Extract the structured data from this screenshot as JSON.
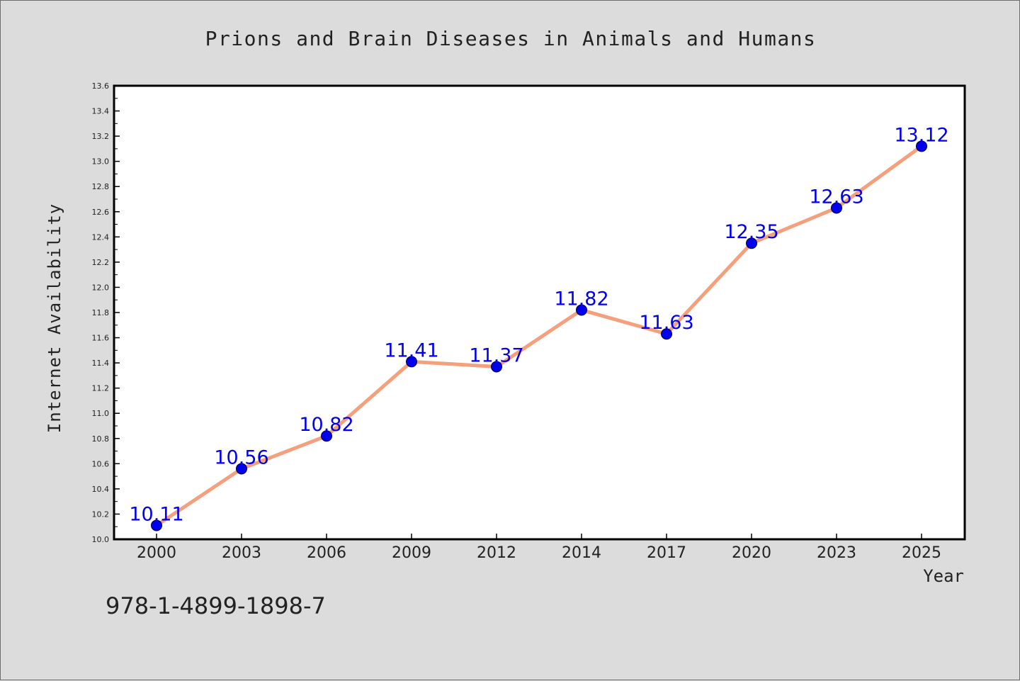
{
  "chart_data": {
    "type": "line",
    "title": "Prions and Brain Diseases in Animals and Humans",
    "xlabel": "Year",
    "ylabel": "Internet Availability",
    "categories": [
      "2000",
      "2003",
      "2006",
      "2009",
      "2012",
      "2014",
      "2017",
      "2020",
      "2023",
      "2025"
    ],
    "series": [
      {
        "values": [
          10.11,
          10.56,
          10.82,
          11.41,
          11.37,
          11.82,
          11.63,
          12.35,
          12.63,
          13.12
        ],
        "data_labels": [
          "10.11",
          "10.56",
          "10.82",
          "11.41",
          "11.37",
          "11.82",
          "11.63",
          "12.35",
          "12.63",
          "13.12"
        ],
        "line_color": "#f4a07c",
        "marker_color": "#0000ee",
        "label_color": "#0000ee"
      }
    ],
    "ylim": [
      10.0,
      13.6
    ],
    "yticks": [
      "10.0",
      "10.2",
      "10.4",
      "10.6",
      "10.8",
      "11.0",
      "11.2",
      "11.4",
      "11.6",
      "11.8",
      "12.0",
      "12.2",
      "12.4",
      "12.6",
      "12.8",
      "13.0",
      "13.2",
      "13.4",
      "13.6"
    ],
    "grid": false,
    "legend": "none"
  },
  "footer_text": "978-1-4899-1898-7",
  "colors": {
    "background": "#dcdcdc",
    "plot_background": "#ffffff",
    "axis": "#000000",
    "text": "#222222"
  }
}
